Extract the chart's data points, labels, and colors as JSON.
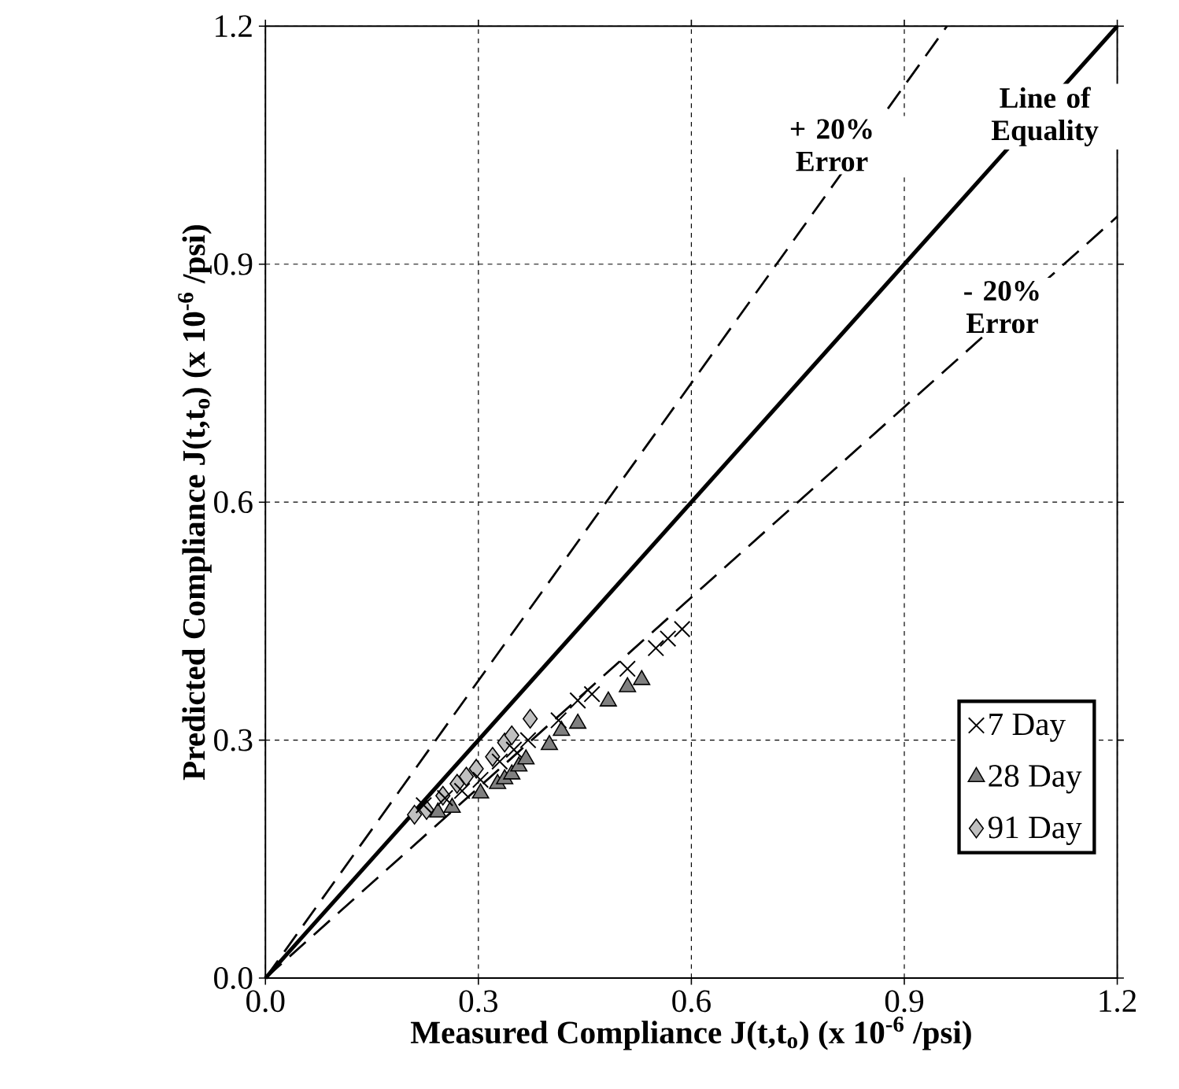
{
  "chart_data": {
    "type": "scatter",
    "xlabel": "Measured Compliance J(t,t$_{o}$) (x 10$^{-6}$ /psi)",
    "ylabel": "Predicted Compliance J(t,t$_{o}$) (x 10$^{-6}$ /psi)",
    "xlim": [
      0,
      1.2
    ],
    "ylim": [
      0,
      1.2
    ],
    "xticks": [
      {
        "value": 0,
        "label": "0.0"
      },
      0.3,
      0.6,
      0.9,
      1.2
    ],
    "yticks": [
      {
        "value": 0,
        "label": "0.0"
      },
      0.3,
      0.6,
      0.9,
      1.2
    ],
    "grid": true,
    "legend": "bottom right",
    "series": [
      {
        "name": "7 Day",
        "color": "#000000",
        "marker": "cross",
        "x": [
          0.223,
          0.253,
          0.277,
          0.303,
          0.33,
          0.35,
          0.37,
          0.413,
          0.44,
          0.46,
          0.51,
          0.55,
          0.567,
          0.587
        ],
        "values": [
          0.218,
          0.227,
          0.236,
          0.25,
          0.273,
          0.288,
          0.3,
          0.325,
          0.35,
          0.358,
          0.39,
          0.416,
          0.428,
          0.44
        ]
      },
      {
        "name": "28 Day",
        "color": "#808080",
        "marker": "triangle",
        "x": [
          0.243,
          0.263,
          0.303,
          0.327,
          0.337,
          0.347,
          0.357,
          0.367,
          0.4,
          0.417,
          0.44,
          0.483,
          0.51,
          0.53
        ],
        "values": [
          0.209,
          0.215,
          0.233,
          0.245,
          0.251,
          0.257,
          0.267,
          0.276,
          0.294,
          0.312,
          0.321,
          0.349,
          0.367,
          0.376
        ]
      },
      {
        "name": "91 Day",
        "color": "#c0c0c0",
        "marker": "diamond",
        "x": [
          0.21,
          0.227,
          0.25,
          0.27,
          0.283,
          0.297,
          0.32,
          0.337,
          0.347,
          0.373
        ],
        "values": [
          0.206,
          0.212,
          0.23,
          0.245,
          0.254,
          0.264,
          0.279,
          0.297,
          0.306,
          0.327
        ]
      },
      {
        "type": "line",
        "color": "#000000",
        "line_style": "solid",
        "x": [
          0,
          1.2
        ],
        "values": [
          0,
          1.2
        ]
      },
      {
        "type": "line",
        "color": "#000000",
        "line_style": "dashed",
        "x": [
          0,
          0.96
        ],
        "values": [
          0,
          1.2
        ]
      },
      {
        "type": "line",
        "color": "#000000",
        "line_style": "dashed",
        "x": [
          0,
          1.2
        ],
        "values": [
          0,
          0.96
        ]
      }
    ],
    "annotations": [
      "+ 20% Error",
      "Line of Equality",
      "- 20% Error"
    ]
  }
}
